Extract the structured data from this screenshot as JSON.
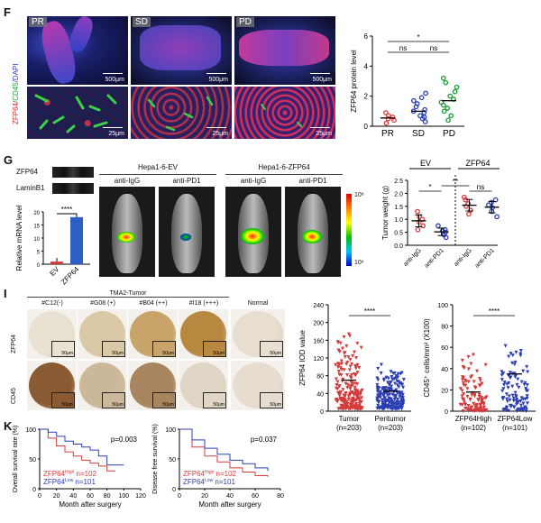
{
  "panel_F": {
    "letter": "F",
    "tissue_labels": [
      "PR",
      "SD",
      "PD"
    ],
    "stain_label": {
      "a": "ZFP64",
      "b": "CD45",
      "c": "DAPI"
    },
    "scale_top": "500μm",
    "scale_bottom": "25μm",
    "colors": {
      "red": "#e8293a",
      "green": "#1aa33b",
      "blue": "#2a3fc7"
    }
  },
  "panel_G": {
    "letter": "G",
    "blot_labels": [
      "ZFP64",
      "LaminB1"
    ],
    "mrna_ylabel": "Relative mRNA level",
    "mrna_categories": [
      "EV",
      "ZFP64"
    ],
    "mrna_values": [
      1,
      18
    ],
    "mrna_yticks": [
      "0",
      "5",
      "10",
      "15",
      "20"
    ],
    "mrna_sig": "****",
    "group_headers": [
      "Hepa1-6-EV",
      "Hepa1-6-ZFP64"
    ],
    "treatments": [
      "anti-IgG",
      "anti-PD1",
      "anti-IgG",
      "anti-PD1"
    ],
    "colorbar_top": "10⁸",
    "colorbar_bottom": "10⁶"
  },
  "panel_I": {
    "letter": "I",
    "header": "TMA2-Tumor",
    "columns": [
      "#C12(-)",
      "#G08 (+)",
      "#B04 (++)",
      "#I18 (+++)",
      "Normal"
    ],
    "rows": [
      "ZFP64",
      "CD45"
    ],
    "scale": "50μm"
  },
  "panel_K": {
    "letter": "K",
    "plots": [
      {
        "ylabel": "Overall survival rate (%)",
        "pvalue": "p=0.003",
        "xlabel": "Month after surgery",
        "xticks": [
          "0",
          "20",
          "40",
          "60",
          "80",
          "100",
          "120"
        ]
      },
      {
        "ylabel": "Disease free survival (%)",
        "pvalue": "p=0.037",
        "xlabel": "Month after surgery",
        "xticks": [
          "0",
          "20",
          "40",
          "60",
          "80"
        ]
      }
    ],
    "legend": [
      {
        "a": "ZFP64",
        "sup": "High",
        "n": "n=102",
        "color": "#d33b3b"
      },
      {
        "a": "ZFP64",
        "sup": "Low",
        "n": "n=101",
        "color": "#2c3fb0"
      }
    ],
    "yticks": [
      "0",
      "50",
      "100"
    ]
  },
  "chart_data": [
    {
      "type": "scatter",
      "panel": "F",
      "ylabel": "ZFP64 protein level",
      "categories": [
        "PR",
        "SD",
        "PD"
      ],
      "ylim": [
        0,
        6
      ],
      "yticks": [
        "0",
        "2",
        "4",
        "6"
      ],
      "colors": [
        "#e33b3b",
        "#2c3fb0",
        "#1a9a35"
      ],
      "points": [
        [
          0.2,
          0.4,
          0.5,
          0.6,
          0.7,
          0.9
        ],
        [
          0.3,
          0.5,
          0.6,
          0.7,
          0.9,
          1.0,
          1.1,
          1.3,
          1.5,
          1.7,
          1.9,
          2.2
        ],
        [
          0.4,
          0.7,
          1.0,
          1.2,
          1.4,
          1.6,
          1.8,
          2.0,
          2.3,
          2.6,
          2.9,
          3.2
        ]
      ],
      "means": [
        0.55,
        1.0,
        1.7
      ],
      "significance": [
        {
          "pair": [
            0,
            1
          ],
          "label": "ns"
        },
        {
          "pair": [
            1,
            2
          ],
          "label": "ns"
        },
        {
          "pair": [
            0,
            2
          ],
          "label": "*"
        }
      ]
    },
    {
      "type": "scatter",
      "panel": "G",
      "ylabel": "Tumor weight (g)",
      "ylim": [
        0,
        2.5
      ],
      "yticks": [
        "0.0",
        "0.5",
        "1.0",
        "1.5",
        "2.0",
        "2.5"
      ],
      "group_labels": [
        "EV",
        "ZFP64"
      ],
      "categories": [
        "anti-IgG",
        "anti-PD1",
        "anti-IgG",
        "anti-PD1"
      ],
      "colors": [
        "#d33b3b",
        "#2c3fb0",
        "#d33b3b",
        "#2c3fb0"
      ],
      "points": [
        [
          0.6,
          0.75,
          0.9,
          1.0,
          1.1,
          1.3
        ],
        [
          0.3,
          0.4,
          0.5,
          0.55,
          0.6,
          0.75
        ],
        [
          1.2,
          1.35,
          1.5,
          1.6,
          1.75,
          1.85
        ],
        [
          1.1,
          1.3,
          1.45,
          1.55,
          1.65,
          1.75
        ]
      ],
      "significance": [
        {
          "pair": [
            0,
            1
          ],
          "label": "*"
        },
        {
          "pair": [
            1,
            2
          ],
          "label": "**"
        },
        {
          "pair": [
            2,
            3
          ],
          "label": "ns"
        }
      ]
    },
    {
      "type": "scatter",
      "panel": "I",
      "ylabel": "ZFP64 IOD value",
      "categories": [
        "Tumor\n(n=203)",
        "Peritumor\n(n=203)"
      ],
      "ylim": [
        0,
        240
      ],
      "yticks": [
        "0",
        "40",
        "80",
        "120",
        "160",
        "200",
        "240"
      ],
      "colors": [
        "#d33b3b",
        "#2c3fb0"
      ],
      "means": [
        70,
        45
      ],
      "spread": [
        [
          5,
          180
        ],
        [
          5,
          110
        ]
      ],
      "significance": [
        {
          "pair": [
            0,
            1
          ],
          "label": "****"
        }
      ]
    },
    {
      "type": "scatter",
      "panel": "I",
      "ylabel": "CD45⁺ cells/mm² (X100)",
      "categories": [
        "ZFP64High\n(n=102)",
        "ZFP64Low\n(n=101)"
      ],
      "ylim": [
        0,
        100
      ],
      "yticks": [
        "0",
        "20",
        "40",
        "60",
        "80",
        "100"
      ],
      "colors": [
        "#d33b3b",
        "#2c3fb0"
      ],
      "means": [
        18,
        35
      ],
      "spread": [
        [
          0,
          55
        ],
        [
          0,
          80
        ]
      ],
      "significance": [
        {
          "pair": [
            0,
            1
          ],
          "label": "****"
        }
      ]
    },
    {
      "type": "line",
      "panel": "K",
      "ylabel": "Overall survival rate (%)",
      "xlabel": "Month after surgery",
      "xlim": [
        0,
        120
      ],
      "ylim": [
        0,
        100
      ],
      "series": [
        {
          "name": "ZFP64High n=102",
          "x": [
            0,
            10,
            20,
            30,
            40,
            50,
            60,
            70,
            80,
            90
          ],
          "y": [
            100,
            85,
            72,
            62,
            55,
            48,
            43,
            38,
            30,
            30
          ]
        },
        {
          "name": "ZFP64Low n=101",
          "x": [
            0,
            10,
            20,
            30,
            40,
            50,
            60,
            70,
            80,
            100
          ],
          "y": [
            100,
            95,
            88,
            80,
            75,
            70,
            65,
            55,
            40,
            40
          ]
        }
      ]
    },
    {
      "type": "line",
      "panel": "K",
      "ylabel": "Disease free survival (%)",
      "xlabel": "Month after surgery",
      "xlim": [
        0,
        80
      ],
      "ylim": [
        0,
        100
      ],
      "series": [
        {
          "name": "ZFP64High n=102",
          "x": [
            0,
            10,
            20,
            30,
            40,
            50,
            60,
            70
          ],
          "y": [
            100,
            70,
            55,
            45,
            35,
            28,
            22,
            20
          ]
        },
        {
          "name": "ZFP64Low n=101",
          "x": [
            0,
            10,
            20,
            30,
            40,
            50,
            60,
            70
          ],
          "y": [
            100,
            82,
            68,
            58,
            48,
            42,
            35,
            30
          ]
        }
      ]
    }
  ]
}
